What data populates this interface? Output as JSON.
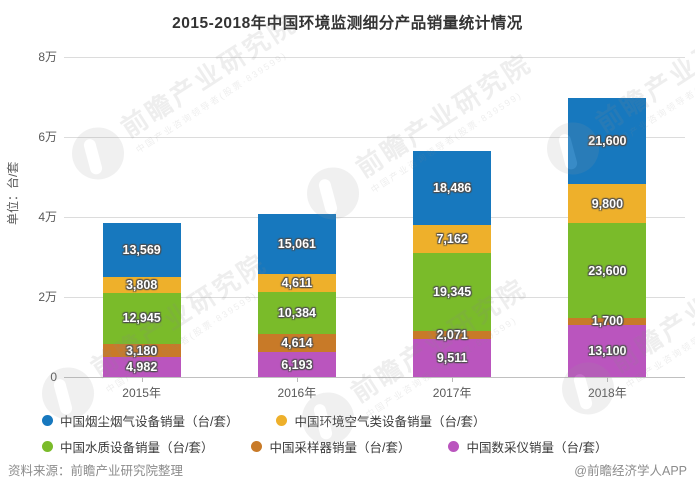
{
  "title": "2015-2018年中国环境监测细分产品销量统计情况",
  "y_axis": {
    "unit_label": "单位：台/套",
    "ticks": [
      {
        "label": "8万",
        "value": 80000
      },
      {
        "label": "6万",
        "value": 60000
      },
      {
        "label": "4万",
        "value": 40000
      },
      {
        "label": "2万",
        "value": 20000
      },
      {
        "label": "0",
        "value": 0
      }
    ]
  },
  "footer": {
    "source": "资料来源：前瞻产业研究院整理",
    "credit": "@前瞻经济学人APP"
  },
  "watermark": {
    "text": "前瞻产业研究院",
    "subtext": "中国产业咨询领导者(股票·839599)"
  },
  "colors": {
    "blue": "#1778BE",
    "amber": "#EEB02B",
    "green": "#7ABB2A",
    "brown": "#C87A28",
    "purple": "#BA55BE",
    "grid": "#DCDCDC",
    "axis": "#C0C0C0",
    "axis_text": "#595959",
    "title_text": "#333333",
    "footer_text": "#8C8C8C",
    "value_label_text": "#FFFFFF",
    "value_label_outline": "#4D4D4D"
  },
  "chart_data": {
    "type": "bar",
    "stacked": true,
    "title": "2015-2018年中国环境监测细分产品销量统计情况",
    "categories": [
      "2015年",
      "2016年",
      "2017年",
      "2018年"
    ],
    "series": [
      {
        "name": "中国烟尘烟气设备销量（台/套）",
        "color": "#1778BE",
        "values": [
          13569,
          15061,
          18486,
          21600
        ]
      },
      {
        "name": "中国环境空气类设备销量（台/套）",
        "color": "#EEB02B",
        "values": [
          3808,
          4611,
          7162,
          9800
        ]
      },
      {
        "name": "中国水质设备销量（台/套）",
        "color": "#7ABB2A",
        "values": [
          12945,
          10384,
          19345,
          23600
        ]
      },
      {
        "name": "中国采样器销量（台/套）",
        "color": "#C87A28",
        "values": [
          3180,
          4614,
          2071,
          1700
        ]
      },
      {
        "name": "中国数采仪销量（台/套）",
        "color": "#BA55BE",
        "values": [
          4982,
          6193,
          9511,
          13100
        ]
      }
    ],
    "stack_order_bottom_to_top": [
      "中国数采仪销量（台/套）",
      "中国采样器销量（台/套）",
      "中国水质设备销量（台/套）",
      "中国环境空气类设备销量（台/套）",
      "中国烟尘烟气设备销量（台/套）"
    ],
    "totals": [
      38484,
      40863,
      56575,
      69800
    ],
    "xlabel": "",
    "ylabel": "单位：台/套",
    "ylim": [
      0,
      80000
    ],
    "y_tick_interval": 20000,
    "grid": true,
    "legend_position": "bottom",
    "value_labels": "on-segments, thousands-separated"
  }
}
